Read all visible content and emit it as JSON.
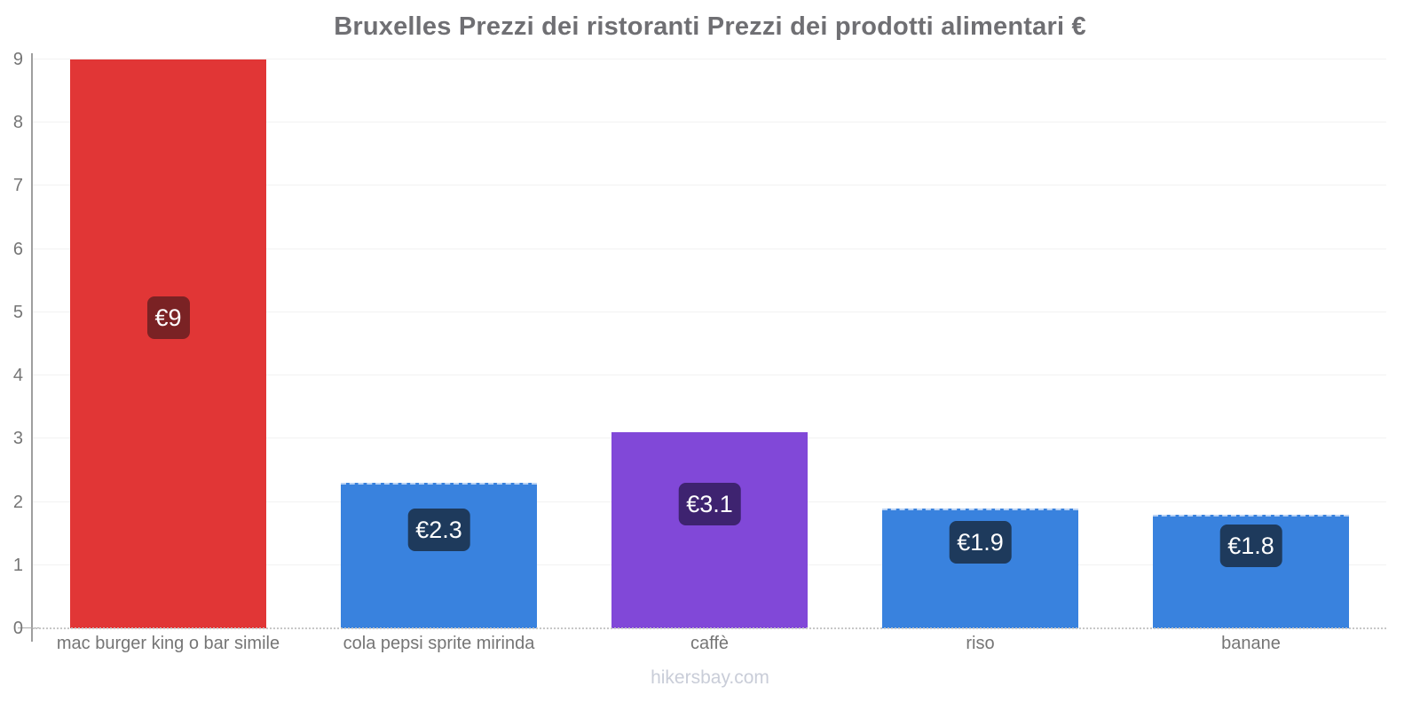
{
  "chart_data": {
    "type": "bar",
    "title": "Bruxelles Prezzi dei ristoranti Prezzi dei prodotti alimentari €",
    "categories": [
      "mac burger king o bar simile",
      "cola pepsi sprite mirinda",
      "caffè",
      "riso",
      "banane"
    ],
    "values": [
      9,
      2.3,
      3.1,
      1.9,
      1.8
    ],
    "value_labels": [
      "€9",
      "€2.3",
      "€3.1",
      "€1.9",
      "€1.8"
    ],
    "currency": "€",
    "ylim": [
      0,
      9
    ],
    "y_ticks": [
      0,
      1,
      2,
      3,
      4,
      5,
      6,
      7,
      8,
      9
    ],
    "xlabel": "",
    "ylabel": "",
    "grid": "faint horizontal gridlines",
    "legend": "none",
    "bar_styles": [
      {
        "bar_color": "#e13636",
        "badge_color": "#7a2224",
        "top_dashed": false
      },
      {
        "bar_color": "#3982de",
        "badge_color": "#1e3a5c",
        "top_dashed": true
      },
      {
        "bar_color": "#8148d8",
        "badge_color": "#3e2370",
        "top_dashed": false
      },
      {
        "bar_color": "#3982de",
        "badge_color": "#1e3a5c",
        "top_dashed": true
      },
      {
        "bar_color": "#3982de",
        "badge_color": "#1e3a5c",
        "top_dashed": true
      }
    ],
    "axis_color": "#9e9e9e",
    "tick_label_color": "#757575",
    "title_color": "#6f6f73"
  },
  "footer": {
    "watermark": "hikersbay.com"
  }
}
